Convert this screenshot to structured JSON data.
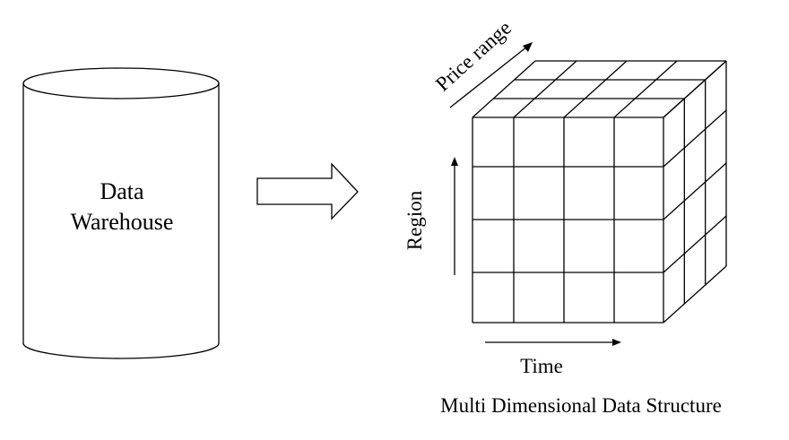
{
  "warehouse": {
    "line1": "Data",
    "line2": "Warehouse"
  },
  "cube": {
    "axis_price": "Price range",
    "axis_region": "Region",
    "axis_time": "Time",
    "caption": "Multi Dimensional  Data Structure",
    "front_cols": 4,
    "front_rows": 4,
    "depth_cells": 3
  },
  "icons": {
    "transform_arrow": "right-arrow-icon",
    "database": "cylinder-icon"
  }
}
